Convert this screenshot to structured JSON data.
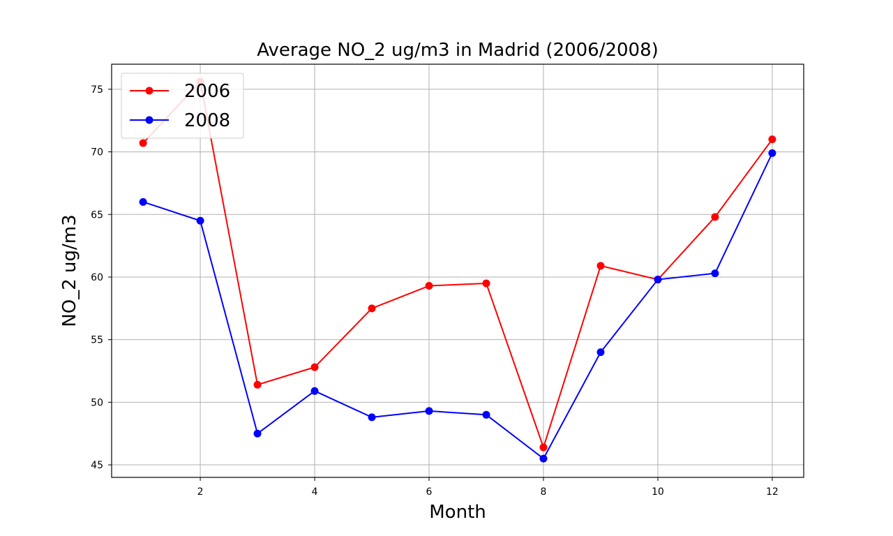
{
  "chart_data": {
    "type": "line",
    "title": "Average NO_2 ug/m3 in Madrid (2006/2008)",
    "xlabel": "Month",
    "ylabel": "NO_2 ug/m3",
    "x": [
      1,
      2,
      3,
      4,
      5,
      6,
      7,
      8,
      9,
      10,
      11,
      12
    ],
    "xlim": [
      0.45,
      12.55
    ],
    "ylim": [
      44.0,
      77.0
    ],
    "xticks": [
      2,
      4,
      6,
      8,
      10,
      12
    ],
    "yticks": [
      45,
      50,
      55,
      60,
      65,
      70,
      75
    ],
    "xtick_labels": [
      "2",
      "4",
      "6",
      "8",
      "10",
      "12"
    ],
    "ytick_labels": [
      "45",
      "50",
      "55",
      "60",
      "65",
      "70",
      "75"
    ],
    "grid": true,
    "legend_position": "top-left",
    "series": [
      {
        "name": "2006",
        "color": "#ff0000",
        "marker": "circle",
        "values": [
          70.7,
          75.6,
          51.4,
          52.8,
          57.5,
          59.3,
          59.5,
          46.4,
          60.9,
          59.8,
          64.8,
          71.0
        ]
      },
      {
        "name": "2008",
        "color": "#0000ff",
        "marker": "circle",
        "values": [
          66.0,
          64.5,
          47.5,
          50.9,
          48.8,
          49.3,
          49.0,
          45.5,
          54.0,
          59.8,
          60.3,
          69.9
        ]
      }
    ]
  }
}
